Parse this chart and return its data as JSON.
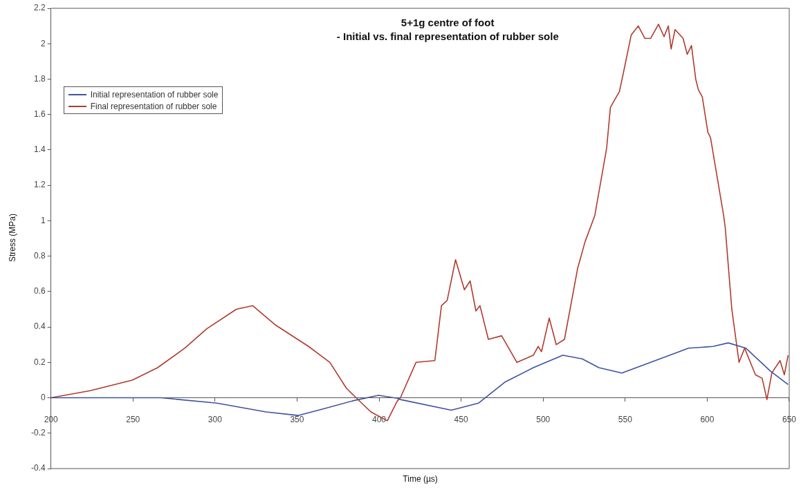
{
  "chart_data": {
    "type": "line",
    "title": "5+1g centre of foot",
    "subtitle": "- Initial vs. final representation of rubber sole",
    "xlabel": "Time (µs)",
    "ylabel": "Stress (MPa)",
    "xlim": [
      200,
      650
    ],
    "xticks": [
      200,
      250,
      300,
      350,
      400,
      450,
      500,
      550,
      600,
      650
    ],
    "ylim": [
      -0.4,
      2.2
    ],
    "yticks": [
      -0.4,
      -0.2,
      0,
      0.2,
      0.4,
      0.6,
      0.8,
      1,
      1.2,
      1.4,
      1.6,
      1.8,
      2,
      2.2
    ],
    "grid": false,
    "legend": "top left",
    "marker": "none",
    "line_style": "solid",
    "series": [
      {
        "name": "Initial representation of rubber sole",
        "color": "#3f51a0",
        "x": [
          200,
          267,
          301,
          331,
          350.6,
          365,
          385,
          399.7,
          411,
          413,
          444,
          460.7,
          477,
          494,
          512,
          523.8,
          534,
          548,
          565.5,
          588.6,
          603.6,
          612.8,
          623.6,
          638.6,
          649.3
        ],
        "values": [
          0,
          0,
          -0.03,
          -0.08,
          -0.1,
          -0.065,
          -0.015,
          0.014,
          -0.003,
          -0.01,
          -0.07,
          -0.03,
          0.09,
          0.17,
          0.24,
          0.22,
          0.17,
          0.14,
          0.2,
          0.28,
          0.29,
          0.31,
          0.28,
          0.15,
          0.075
        ]
      },
      {
        "name": "Final representation of rubber sole",
        "color": "#b03a2e",
        "x": [
          200,
          224,
          249.6,
          265,
          281.5,
          295,
          313,
          323,
          337,
          357,
          370,
          380,
          386,
          395,
          405,
          411,
          413,
          422.5,
          434,
          438,
          441.5,
          446.6,
          452,
          455.5,
          459,
          461.5,
          466.6,
          474.7,
          484,
          494,
          497,
          499,
          503.7,
          508,
          513,
          521,
          525.5,
          531.5,
          538.7,
          541,
          546.5,
          549.7,
          553.7,
          558,
          562,
          565.5,
          570.3,
          573.7,
          576.3,
          578,
          580.4,
          585.3,
          587.8,
          590.4,
          593,
          594.6,
          597,
          600.4,
          602,
          610,
          611,
          615,
          619.4,
          622.8,
          629.4,
          633.5,
          636.4,
          639.4,
          644.4,
          647,
          649.3
        ],
        "values": [
          0,
          0.04,
          0.1,
          0.17,
          0.28,
          0.39,
          0.5,
          0.52,
          0.41,
          0.29,
          0.2,
          0.055,
          0,
          -0.08,
          -0.13,
          -0.02,
          0,
          0.2,
          0.21,
          0.52,
          0.55,
          0.78,
          0.61,
          0.66,
          0.49,
          0.52,
          0.33,
          0.35,
          0.2,
          0.24,
          0.29,
          0.26,
          0.45,
          0.3,
          0.33,
          0.73,
          0.88,
          1.03,
          1.41,
          1.64,
          1.73,
          1.87,
          2.05,
          2.1,
          2.03,
          2.03,
          2.11,
          2.04,
          2.1,
          1.97,
          2.08,
          2.03,
          1.94,
          1.99,
          1.8,
          1.74,
          1.7,
          1.5,
          1.47,
          1.03,
          0.96,
          0.5,
          0.2,
          0.28,
          0.13,
          0.11,
          -0.01,
          0.14,
          0.21,
          0.13,
          0.24
        ]
      }
    ]
  }
}
